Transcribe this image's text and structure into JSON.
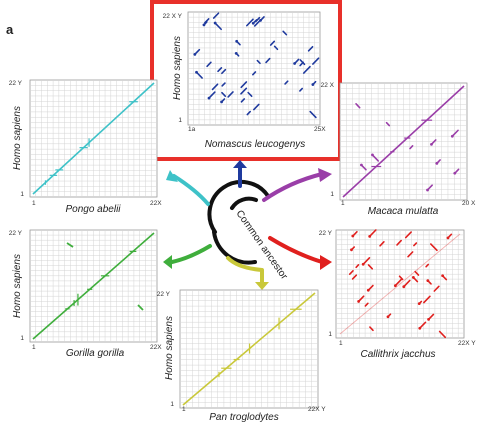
{
  "figure": {
    "panel_letter": "a",
    "center_label": "Common ancestor",
    "y_axis_label": "Homo sapiens"
  },
  "panels": [
    {
      "id": "nomascus",
      "species": "Nomascus leucogenys",
      "color": "#1f3a9e",
      "highlighted": true,
      "x_tick_start": "1a",
      "x_tick_end": "25X",
      "y_tick_start": "1",
      "y_tick_end": "22 X Y"
    },
    {
      "id": "pongo",
      "species": "Pongo abelii",
      "color": "#3ec2c8",
      "highlighted": false,
      "x_tick_start": "1",
      "x_tick_end": "22X",
      "y_tick_start": "1",
      "y_tick_end": "22 Y"
    },
    {
      "id": "macaca",
      "species": "Macaca mulatta",
      "color": "#9a3ea8",
      "highlighted": false,
      "x_tick_start": "1",
      "x_tick_end": "20 X",
      "y_tick_start": "1",
      "y_tick_end": "22 X"
    },
    {
      "id": "gorilla",
      "species": "Gorilla gorilla",
      "color": "#3fae3c",
      "highlighted": false,
      "x_tick_start": "1",
      "x_tick_end": "22X",
      "y_tick_start": "1",
      "y_tick_end": "22 Y"
    },
    {
      "id": "callithrix",
      "species": "Callithrix jacchus",
      "color": "#e0201e",
      "highlighted": false,
      "x_tick_start": "1",
      "x_tick_end": "22X Y",
      "y_tick_start": "1",
      "y_tick_end": "22 Y"
    },
    {
      "id": "pan",
      "species": "Pan troglodytes",
      "color": "#c9c83a",
      "highlighted": false,
      "x_tick_start": "1",
      "x_tick_end": "22X Y",
      "y_tick_start": "1",
      "y_tick_end": "22 Y"
    }
  ],
  "colors": {
    "highlight_frame": "#e8302a",
    "grid": "#d4d4d4",
    "tree": "#111111"
  }
}
